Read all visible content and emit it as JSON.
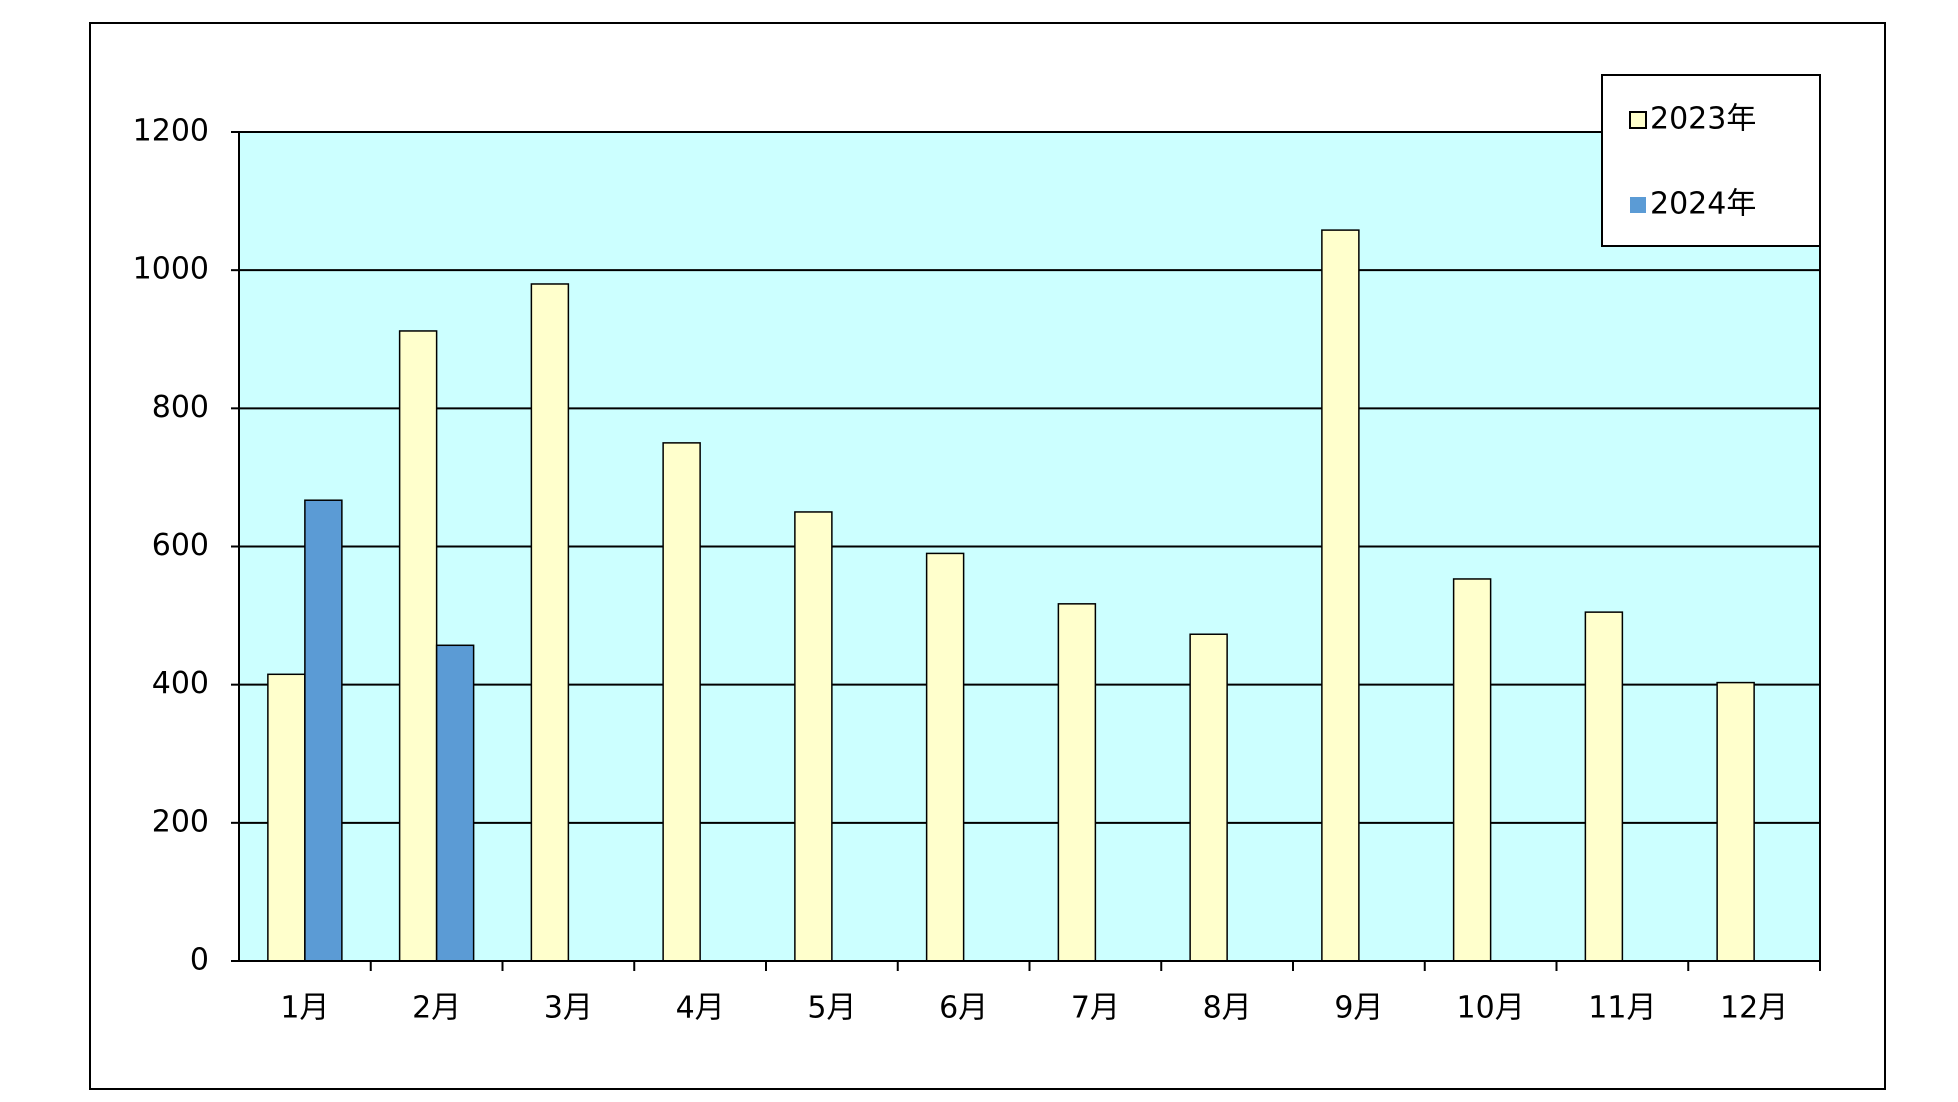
{
  "chart_data": {
    "type": "bar",
    "categories": [
      "1月",
      "2月",
      "3月",
      "4月",
      "5月",
      "6月",
      "7月",
      "8月",
      "9月",
      "10月",
      "11月",
      "12月"
    ],
    "series": [
      {
        "name": "2023年",
        "color": "#ffffcc",
        "values": [
          415,
          912,
          980,
          750,
          650,
          590,
          517,
          473,
          1058,
          553,
          505,
          403
        ]
      },
      {
        "name": "2024年",
        "color": "#5b9bd5",
        "values": [
          667,
          457,
          null,
          null,
          null,
          null,
          null,
          null,
          null,
          null,
          null,
          null
        ]
      }
    ],
    "ylim": [
      0,
      1200
    ],
    "yticks": [
      0,
      200,
      400,
      600,
      800,
      1000,
      1200
    ],
    "grid": true,
    "legend": "top-right",
    "background": "#ccffff"
  }
}
